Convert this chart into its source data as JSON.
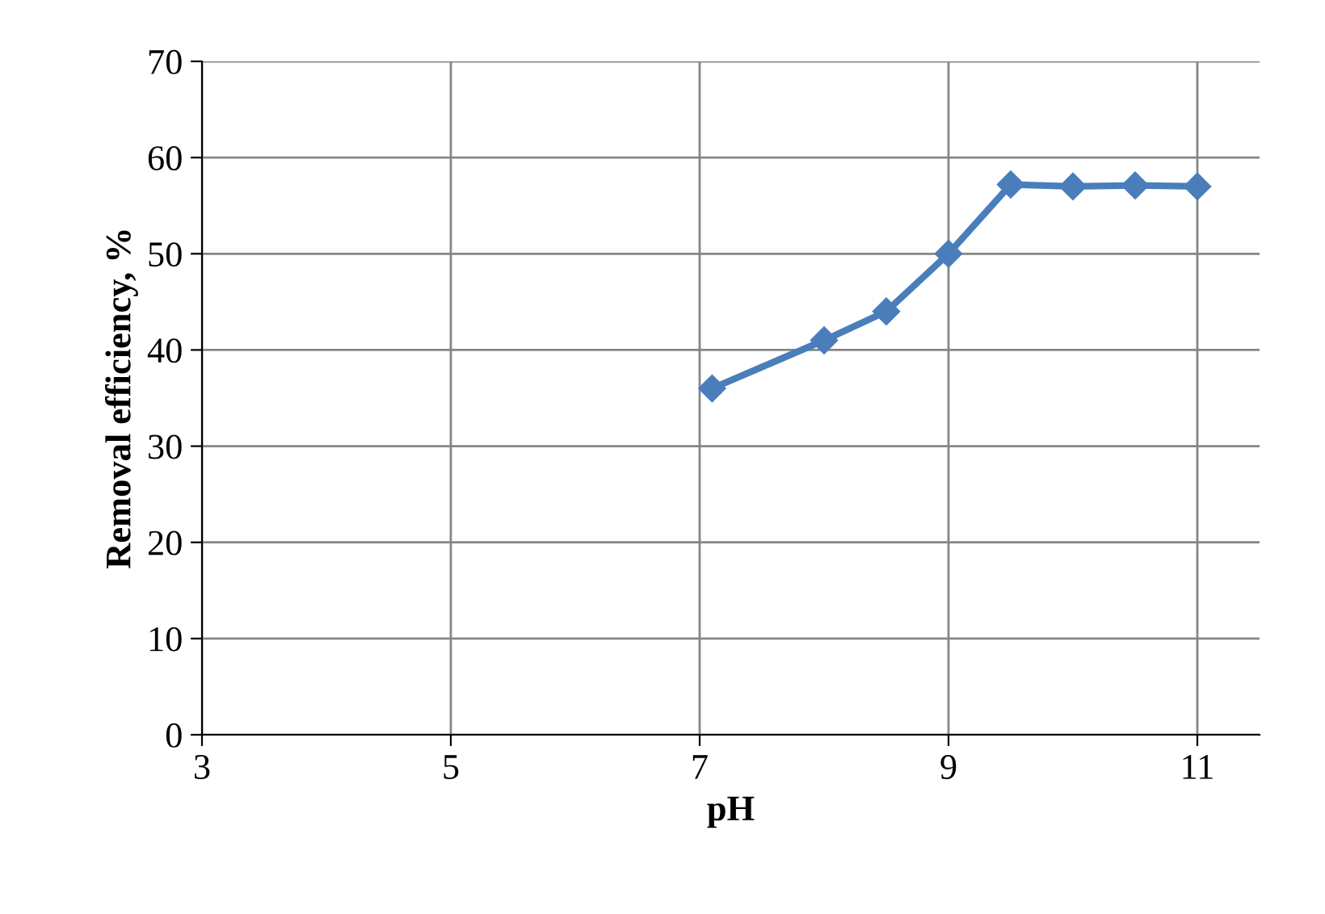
{
  "chart_data": {
    "type": "line",
    "xlabel": "pH",
    "ylabel": "Removal efficiency, %",
    "x": [
      7.1,
      8,
      8.5,
      9,
      9.5,
      10,
      10.5,
      11
    ],
    "series": [
      {
        "color": "#4a7ebb",
        "values": [
          36,
          41,
          44,
          50,
          57.2,
          57,
          57.1,
          57
        ]
      }
    ],
    "xlim": [
      3,
      11.5
    ],
    "xticks": [
      3,
      5,
      7,
      9,
      11
    ],
    "ylim": [
      0,
      70
    ],
    "yticks": [
      0,
      10,
      20,
      30,
      40,
      50,
      60,
      70
    ],
    "grid": true,
    "marker": "diamond",
    "line_style": "solid"
  }
}
